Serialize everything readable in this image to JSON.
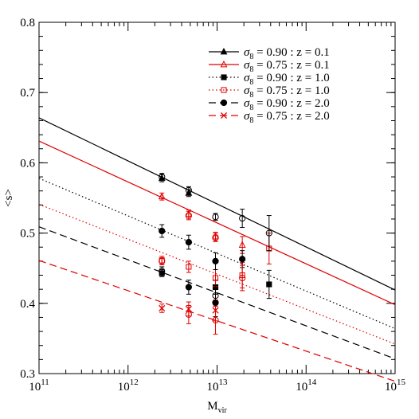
{
  "chart_data": {
    "type": "line",
    "xlabel": "M",
    "xlabel_sub": "vir",
    "ylabel": "<s>",
    "xscale": "log",
    "xlim": [
      100000000000.0,
      1000000000000000.0
    ],
    "ylim": [
      0.3,
      0.8
    ],
    "x_ticks": [
      {
        "value": 100000000000.0,
        "base": "10",
        "exp": "11"
      },
      {
        "value": 1000000000000.0,
        "base": "10",
        "exp": "12"
      },
      {
        "value": 10000000000000.0,
        "base": "10",
        "exp": "13"
      },
      {
        "value": 100000000000000.0,
        "base": "10",
        "exp": "14"
      },
      {
        "value": 1000000000000000.0,
        "base": "10",
        "exp": "15"
      }
    ],
    "y_ticks": [
      {
        "value": 0.3,
        "label": "0.3"
      },
      {
        "value": 0.4,
        "label": "0.4"
      },
      {
        "value": 0.5,
        "label": "0.5"
      },
      {
        "value": 0.6,
        "label": "0.6"
      },
      {
        "value": 0.7,
        "label": "0.7"
      },
      {
        "value": 0.8,
        "label": "0.8"
      }
    ],
    "grid": false,
    "legend_position": "top-right",
    "legend_template": {
      "sym": "σ",
      "sub": "8",
      "mid": "=",
      "sep": ":",
      "z_label": "z",
      "z_eq": "="
    },
    "series": [
      {
        "name": "σ8 = 0.90 : z = 0.1",
        "sigma8": "0.90",
        "z": "0.1",
        "color": "#000000",
        "dash": "solid",
        "marker": "triangle-filled",
        "curve_x": [
          100000000000.0,
          1000000000000000.0
        ],
        "curve_y": [
          0.664,
          0.419
        ],
        "points": [
          {
            "x": 2400000000000.0,
            "y": 0.578,
            "err": 0.005
          },
          {
            "x": 4800000000000.0,
            "y": 0.557,
            "err": 0.005
          }
        ]
      },
      {
        "name": "σ8 = 0.75 : z = 0.1",
        "sigma8": "0.75",
        "z": "0.1",
        "color": "#e00000",
        "dash": "solid",
        "marker": "triangle-open",
        "curve_x": [
          100000000000.0,
          1000000000000000.0
        ],
        "curve_y": [
          0.631,
          0.398
        ],
        "points": [
          {
            "x": 2400000000000.0,
            "y": 0.552,
            "err": 0.005
          },
          {
            "x": 4800000000000.0,
            "y": 0.527,
            "err": 0.006
          },
          {
            "x": 9600000000000.0,
            "y": 0.495,
            "err": 0.006
          },
          {
            "x": 19200000000000.0,
            "y": 0.483,
            "err": 0.012
          }
        ]
      },
      {
        "name": "σ8 = 0.90 : z = 1.0",
        "sigma8": "0.90",
        "z": "1.0",
        "color": "#000000",
        "dash": "dotted",
        "marker": "square-filled",
        "curve_x": [
          100000000000.0,
          1000000000000000.0
        ],
        "curve_y": [
          0.578,
          0.364
        ],
        "points": [
          {
            "x": 2400000000000.0,
            "y": 0.443,
            "err": 0.005
          },
          {
            "x": 9600000000000.0,
            "y": 0.423,
            "err": 0.01
          },
          {
            "x": 38400000000000.0,
            "y": 0.427,
            "err": 0.02
          }
        ]
      },
      {
        "name": "σ8 = 0.75 : z = 1.0",
        "sigma8": "0.75",
        "z": "1.0",
        "color": "#e00000",
        "dash": "dotted",
        "marker": "square-open",
        "curve_x": [
          100000000000.0,
          1000000000000000.0
        ],
        "curve_y": [
          0.541,
          0.342
        ],
        "points": [
          {
            "x": 2400000000000.0,
            "y": 0.461,
            "err": 0.006
          },
          {
            "x": 4800000000000.0,
            "y": 0.452,
            "err": 0.008
          },
          {
            "x": 9600000000000.0,
            "y": 0.436,
            "err": 0.012
          },
          {
            "x": 19200000000000.0,
            "y": 0.44,
            "err": 0.018
          },
          {
            "x": 38400000000000.0,
            "y": 0.478,
            "err": 0.022
          }
        ]
      },
      {
        "name": "σ8 = 0.90 : z = 2.0",
        "sigma8": "0.90",
        "z": "2.0",
        "color": "#000000",
        "dash": "dashed",
        "marker": "circle-filled",
        "curve_x": [
          100000000000.0,
          1000000000000000.0
        ],
        "curve_y": [
          0.509,
          0.321
        ],
        "points": [
          {
            "x": 2400000000000.0,
            "y": 0.503,
            "err": 0.009
          },
          {
            "x": 4800000000000.0,
            "y": 0.487,
            "err": 0.01
          },
          {
            "x": 9600000000000.0,
            "y": 0.46,
            "err": 0.012
          },
          {
            "x": 19200000000000.0,
            "y": 0.463,
            "err": 0.012
          },
          {
            "x": 4800000000000.0,
            "y": 0.423,
            "err": 0.01
          },
          {
            "x": 9600000000000.0,
            "y": 0.401,
            "err": 0.02
          }
        ]
      },
      {
        "name": "σ8 = 0.75 : z = 2.0",
        "sigma8": "0.75",
        "z": "2.0",
        "color": "#e00000",
        "dash": "dashed",
        "marker": "cross",
        "curve_x": [
          100000000000.0,
          1000000000000000.0
        ],
        "curve_y": [
          0.461,
          0.289
        ],
        "points": [
          {
            "x": 2400000000000.0,
            "y": 0.393,
            "err": 0.006
          },
          {
            "x": 4800000000000.0,
            "y": 0.392,
            "err": 0.01
          },
          {
            "x": 9600000000000.0,
            "y": 0.39,
            "err": 0.015
          }
        ]
      },
      {
        "name": "",
        "color": "#000000",
        "dash": "none",
        "marker": "circle-open",
        "points": [
          {
            "x": 2400000000000.0,
            "y": 0.58,
            "err": 0.005
          },
          {
            "x": 4800000000000.0,
            "y": 0.561,
            "err": 0.005
          },
          {
            "x": 9600000000000.0,
            "y": 0.523,
            "err": 0.005
          },
          {
            "x": 19200000000000.0,
            "y": 0.521,
            "err": 0.013
          },
          {
            "x": 38400000000000.0,
            "y": 0.5,
            "err": 0.025
          },
          {
            "x": 9600000000000.0,
            "y": 0.411,
            "err": 0.015
          },
          {
            "x": 2400000000000.0,
            "y": 0.446,
            "err": 0.006
          }
        ]
      },
      {
        "name": "",
        "color": "#e00000",
        "dash": "none",
        "marker": "circle-open",
        "points": [
          {
            "x": 2400000000000.0,
            "y": 0.46,
            "err": 0.005
          },
          {
            "x": 4800000000000.0,
            "y": 0.384,
            "err": 0.013
          },
          {
            "x": 9600000000000.0,
            "y": 0.376,
            "err": 0.02
          },
          {
            "x": 19200000000000.0,
            "y": 0.436,
            "err": 0.018
          },
          {
            "x": 4800000000000.0,
            "y": 0.525,
            "err": 0.006
          },
          {
            "x": 9600000000000.0,
            "y": 0.494,
            "err": 0.006
          }
        ]
      }
    ]
  }
}
